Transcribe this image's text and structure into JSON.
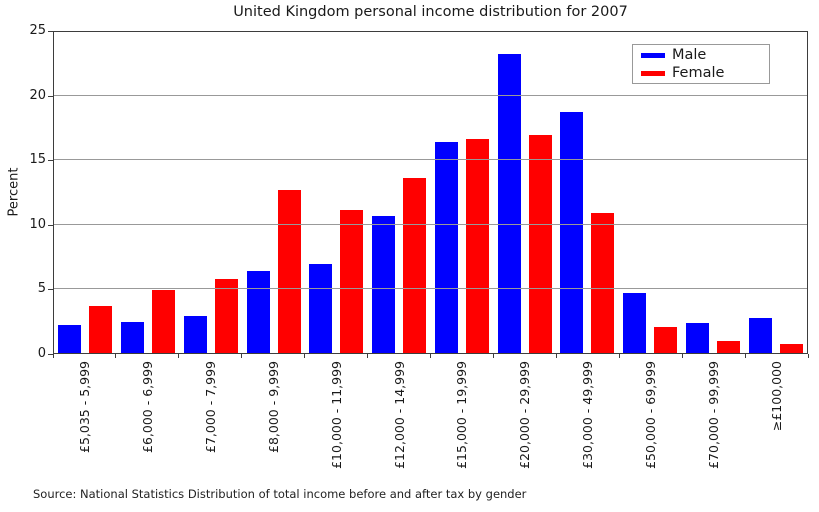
{
  "source_note": "Source: National Statistics Distribution of total income before and after tax by gender",
  "chart_data": {
    "type": "bar",
    "title": "United Kingdom personal income distribution for 2007",
    "xlabel": "",
    "ylabel": "Percent",
    "ylim": [
      0,
      25
    ],
    "yticks": [
      0,
      5,
      10,
      15,
      20,
      25
    ],
    "grid": "horizontal gridlines at 5, 10, 15, 20",
    "legend_position": "upper right",
    "categories": [
      "£5,035 - 5,999",
      "£6,000 - 6,999",
      "£7,000 - 7,999",
      "£8,000 - 9,999",
      "£10,000 - 11,999",
      "£12,000 - 14,999",
      "£15,000 - 19,999",
      "£20,000 - 29,999",
      "£30,000 - 49,999",
      "£50,000 - 69,999",
      "£70,000 - 99,999",
      "≥£100,000"
    ],
    "series": [
      {
        "name": "Male",
        "color": "#0000ff",
        "values": [
          2.2,
          2.4,
          2.9,
          6.4,
          6.9,
          10.7,
          16.4,
          23.3,
          18.8,
          4.7,
          2.3,
          2.7
        ]
      },
      {
        "name": "Female",
        "color": "#ff0000",
        "values": [
          3.7,
          4.9,
          5.8,
          12.7,
          11.1,
          13.6,
          16.7,
          17.0,
          10.9,
          2.0,
          0.9,
          0.7
        ]
      }
    ]
  }
}
